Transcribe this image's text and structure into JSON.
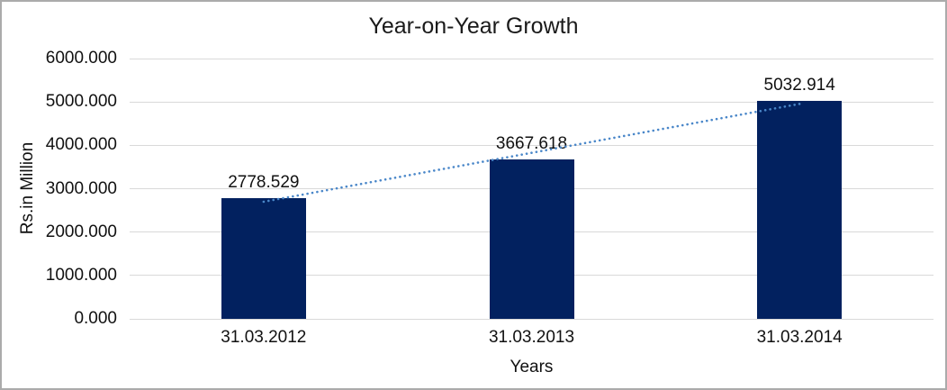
{
  "chart_data": {
    "type": "bar",
    "title": "Year-on-Year Growth",
    "xlabel": "Years",
    "ylabel": "Rs.in Million",
    "categories": [
      "31.03.2012",
      "31.03.2013",
      "31.03.2014"
    ],
    "values": [
      2778.529,
      3667.618,
      5032.914
    ],
    "value_labels": [
      "2778.529",
      "3667.618",
      "5032.914"
    ],
    "ylim": [
      0,
      6000
    ],
    "ytick_values": [
      0,
      1000,
      2000,
      3000,
      4000,
      5000,
      6000
    ],
    "ytick_labels": [
      "0.000",
      "1000.000",
      "2000.000",
      "3000.000",
      "4000.000",
      "5000.000",
      "6000.000"
    ],
    "grid": true,
    "legend": false,
    "trendline": "linear-dotted",
    "colors": {
      "bar": "#02215f",
      "trendline": "#4a87c9",
      "gridline": "#d9d9d9",
      "text": "#111111",
      "frame_border": "#ababab",
      "background": "#ffffff"
    }
  }
}
